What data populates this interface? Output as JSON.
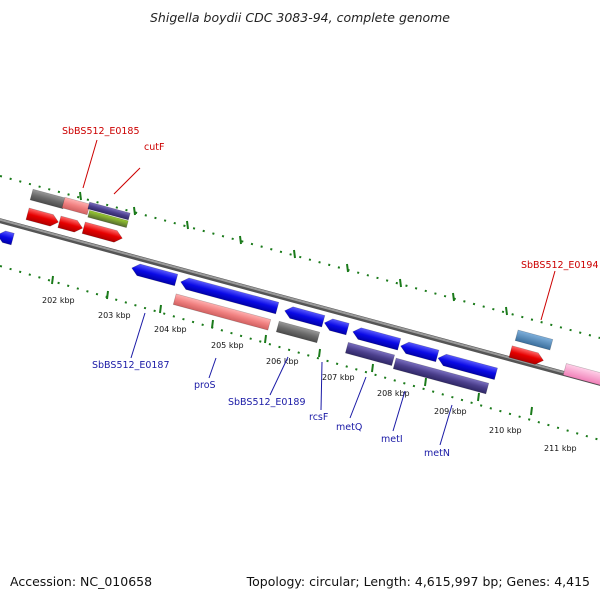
{
  "title": "Shigella boydii CDC 3083-94, complete genome",
  "footer": {
    "accession": "Accession: NC_010658",
    "summary": "Topology: circular; Length: 4,615,997 bp; Genes: 4,415"
  },
  "scale": {
    "unit": "kbp",
    "tick_labels": [
      "202 kbp",
      "203 kbp",
      "204 kbp",
      "205 kbp",
      "206 kbp",
      "207 kbp",
      "208 kbp",
      "209 kbp",
      "210 kbp",
      "211 kbp"
    ]
  },
  "genes": {
    "top_labels": [
      {
        "text": "SbBS512_E0185",
        "color": "#cc0000"
      },
      {
        "text": "cutF",
        "color": "#cc0000"
      },
      {
        "text": "SbBS512_E0194",
        "color": "#cc0000"
      }
    ],
    "bottom_labels": [
      {
        "text": "SbBS512_E0187",
        "color": "#1a1aa6"
      },
      {
        "text": "proS",
        "color": "#1a1aa6"
      },
      {
        "text": "SbBS512_E0189",
        "color": "#1a1aa6"
      },
      {
        "text": "rcsF",
        "color": "#1a1aa6"
      },
      {
        "text": "metQ",
        "color": "#1a1aa6"
      },
      {
        "text": "metI",
        "color": "#1a1aa6"
      },
      {
        "text": "metN",
        "color": "#1a1aa6"
      }
    ]
  },
  "colors": {
    "backbone": "#777777",
    "forward_strand": "#e50000",
    "reverse_strand": "#0a0ae6",
    "pseudo": "#6b6b6b",
    "rrna_pink": "#f08080",
    "purple": "#4b3f8c",
    "olive": "#6b8e23",
    "steelblue": "#4682b4",
    "light_pink": "#ff9ecf",
    "tick_green": "#1a7a1a"
  }
}
